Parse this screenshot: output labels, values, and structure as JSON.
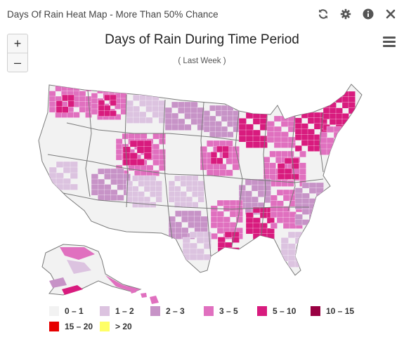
{
  "panel": {
    "title": "Days Of Rain Heat Map - More Than 50% Chance"
  },
  "toolbar": {
    "icons": [
      "refresh-icon",
      "gear-icon",
      "info-icon",
      "close-icon"
    ]
  },
  "map": {
    "title": "Days of Rain During Time Period",
    "subtitle": "( Last Week )",
    "zoom_in_label": "+",
    "zoom_out_label": "–"
  },
  "colors": {
    "range_0_1": "#f2f2f2",
    "range_1_2": "#dcc3e0",
    "range_2_3": "#c793c7",
    "range_3_5": "#e070bf",
    "range_5_10": "#d81b7e",
    "range_10_15": "#990042",
    "range_15_20": "#e60000",
    "range_gt_20": "#ffff66",
    "state_border": "#7a7a7a"
  },
  "legend": [
    {
      "label": "0 – 1",
      "color": "#f2f2f2"
    },
    {
      "label": "1 – 2",
      "color": "#dcc3e0"
    },
    {
      "label": "2 – 3",
      "color": "#c793c7"
    },
    {
      "label": "3 – 5",
      "color": "#e070bf"
    },
    {
      "label": "5 – 10",
      "color": "#d81b7e"
    },
    {
      "label": "10 – 15",
      "color": "#990042"
    },
    {
      "label": "15 – 20",
      "color": "#e60000"
    },
    {
      "label": "> 20",
      "color": "#ffff66"
    }
  ]
}
